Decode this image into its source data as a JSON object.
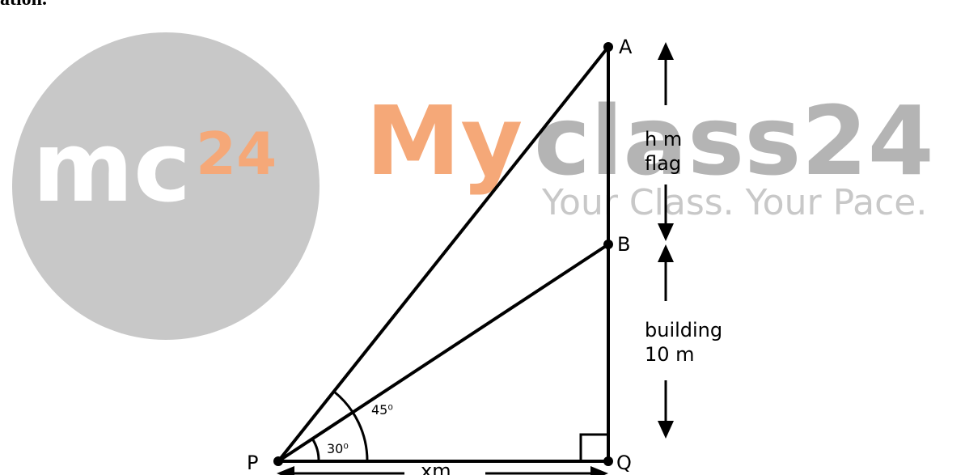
{
  "header_fragment": "ation.",
  "watermark": {
    "logo_mc": "mc",
    "logo_sup": "24",
    "brand_my": "My",
    "brand_class": "class24",
    "tagline": "Your Class. Your Pace.",
    "colors": {
      "circle": "#c8c8c8",
      "orange": "#f5a878",
      "grey_text": "#b4b4b4",
      "white": "#ffffff"
    }
  },
  "diagram": {
    "points": {
      "A": "A",
      "B": "B",
      "P": "P",
      "Q": "Q"
    },
    "angle_small": "30⁰",
    "angle_large": "45⁰",
    "flag_label": [
      "h m",
      "flag"
    ],
    "building_label": [
      "building",
      "10 m"
    ],
    "base_label": "xm"
  }
}
